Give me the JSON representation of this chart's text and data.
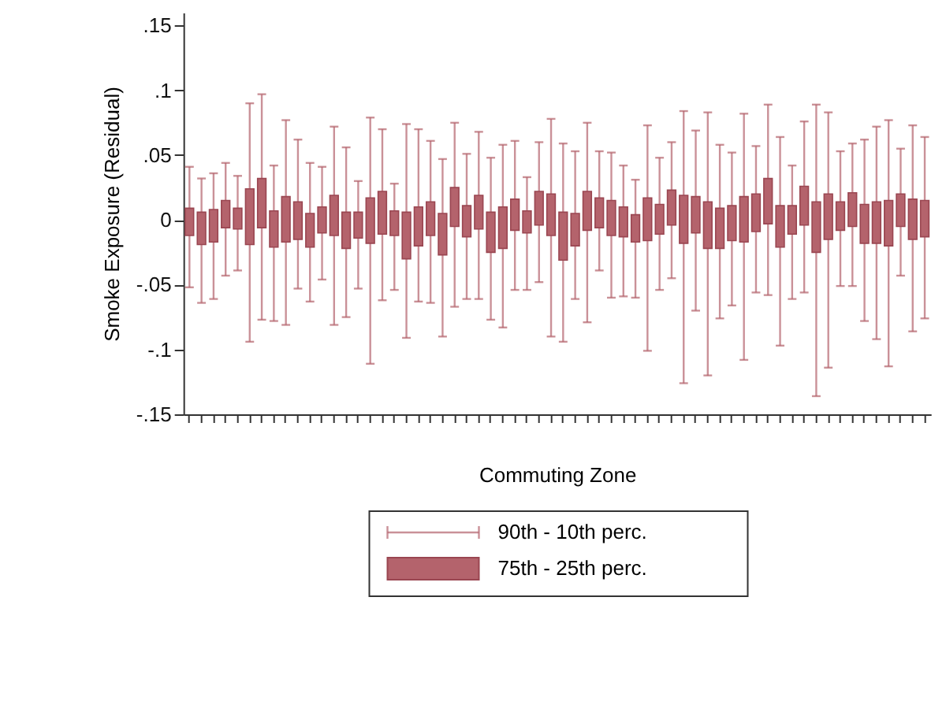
{
  "chart_data": {
    "type": "box",
    "xlabel": "Commuting Zone",
    "ylabel": "Smoke Exposure (Residual)",
    "categories": [
      null,
      null,
      null,
      null,
      null,
      null,
      null,
      null,
      null,
      null,
      null,
      null,
      null,
      null,
      null,
      null,
      null,
      null,
      null,
      null,
      null,
      null,
      null,
      null,
      null,
      null,
      null,
      null,
      null,
      null,
      null,
      null,
      null,
      null,
      null,
      null,
      null,
      null,
      null,
      null,
      null,
      null,
      null,
      null,
      null,
      null,
      null,
      null,
      null,
      null,
      null,
      null,
      null,
      null,
      null,
      null,
      null,
      null,
      null,
      null,
      null,
      null
    ],
    "annotations": [
      "90th - 10th perc."
    ],
    "series": [
      {
        "name": "75th - 25th perc.",
        "color": "#b4636c",
        "boxes": [
          {
            "low": -0.052,
            "q1": -0.012,
            "q3": 0.009,
            "high": 0.041
          },
          {
            "low": -0.064,
            "q1": -0.019,
            "q3": 0.006,
            "high": 0.032
          },
          {
            "low": -0.061,
            "q1": -0.017,
            "q3": 0.008,
            "high": 0.036
          },
          {
            "low": -0.043,
            "q1": -0.006,
            "q3": 0.015,
            "high": 0.044
          },
          {
            "low": -0.039,
            "q1": -0.007,
            "q3": 0.009,
            "high": 0.034
          },
          {
            "low": -0.094,
            "q1": -0.019,
            "q3": 0.024,
            "high": 0.09
          },
          {
            "low": -0.077,
            "q1": -0.006,
            "q3": 0.032,
            "high": 0.097
          },
          {
            "low": -0.078,
            "q1": -0.021,
            "q3": 0.007,
            "high": 0.042
          },
          {
            "low": -0.081,
            "q1": -0.017,
            "q3": 0.018,
            "high": 0.077
          },
          {
            "low": -0.053,
            "q1": -0.015,
            "q3": 0.014,
            "high": 0.062
          },
          {
            "low": -0.063,
            "q1": -0.021,
            "q3": 0.005,
            "high": 0.044
          },
          {
            "low": -0.046,
            "q1": -0.01,
            "q3": 0.01,
            "high": 0.041
          },
          {
            "low": -0.081,
            "q1": -0.012,
            "q3": 0.019,
            "high": 0.072
          },
          {
            "low": -0.075,
            "q1": -0.022,
            "q3": 0.006,
            "high": 0.056
          },
          {
            "low": -0.053,
            "q1": -0.014,
            "q3": 0.006,
            "high": 0.03
          },
          {
            "low": -0.111,
            "q1": -0.018,
            "q3": 0.017,
            "high": 0.079
          },
          {
            "low": -0.062,
            "q1": -0.011,
            "q3": 0.022,
            "high": 0.07
          },
          {
            "low": -0.054,
            "q1": -0.012,
            "q3": 0.007,
            "high": 0.028
          },
          {
            "low": -0.091,
            "q1": -0.03,
            "q3": 0.006,
            "high": 0.074
          },
          {
            "low": -0.063,
            "q1": -0.02,
            "q3": 0.01,
            "high": 0.07
          },
          {
            "low": -0.064,
            "q1": -0.012,
            "q3": 0.014,
            "high": 0.061
          },
          {
            "low": -0.09,
            "q1": -0.027,
            "q3": 0.005,
            "high": 0.047
          },
          {
            "low": -0.067,
            "q1": -0.005,
            "q3": 0.025,
            "high": 0.075
          },
          {
            "low": -0.061,
            "q1": -0.013,
            "q3": 0.011,
            "high": 0.051
          },
          {
            "low": -0.061,
            "q1": -0.007,
            "q3": 0.019,
            "high": 0.068
          },
          {
            "low": -0.077,
            "q1": -0.025,
            "q3": 0.006,
            "high": 0.048
          },
          {
            "low": -0.083,
            "q1": -0.022,
            "q3": 0.01,
            "high": 0.058
          },
          {
            "low": -0.054,
            "q1": -0.008,
            "q3": 0.016,
            "high": 0.061
          },
          {
            "low": -0.054,
            "q1": -0.01,
            "q3": 0.007,
            "high": 0.033
          },
          {
            "low": -0.048,
            "q1": -0.004,
            "q3": 0.022,
            "high": 0.06
          },
          {
            "low": -0.09,
            "q1": -0.012,
            "q3": 0.02,
            "high": 0.078
          },
          {
            "low": -0.094,
            "q1": -0.031,
            "q3": 0.006,
            "high": 0.059
          },
          {
            "low": -0.061,
            "q1": -0.02,
            "q3": 0.005,
            "high": 0.053
          },
          {
            "low": -0.079,
            "q1": -0.008,
            "q3": 0.022,
            "high": 0.075
          },
          {
            "low": -0.039,
            "q1": -0.006,
            "q3": 0.017,
            "high": 0.053
          },
          {
            "low": -0.06,
            "q1": -0.012,
            "q3": 0.015,
            "high": 0.052
          },
          {
            "low": -0.059,
            "q1": -0.013,
            "q3": 0.01,
            "high": 0.042
          },
          {
            "low": -0.06,
            "q1": -0.017,
            "q3": 0.004,
            "high": 0.031
          },
          {
            "low": -0.101,
            "q1": -0.016,
            "q3": 0.017,
            "high": 0.073
          },
          {
            "low": -0.054,
            "q1": -0.011,
            "q3": 0.012,
            "high": 0.048
          },
          {
            "low": -0.045,
            "q1": -0.004,
            "q3": 0.023,
            "high": 0.06
          },
          {
            "low": -0.126,
            "q1": -0.018,
            "q3": 0.019,
            "high": 0.084
          },
          {
            "low": -0.07,
            "q1": -0.01,
            "q3": 0.018,
            "high": 0.069
          },
          {
            "low": -0.12,
            "q1": -0.022,
            "q3": 0.014,
            "high": 0.083
          },
          {
            "low": -0.076,
            "q1": -0.022,
            "q3": 0.009,
            "high": 0.058
          },
          {
            "low": -0.066,
            "q1": -0.016,
            "q3": 0.011,
            "high": 0.052
          },
          {
            "low": -0.108,
            "q1": -0.017,
            "q3": 0.018,
            "high": 0.082
          },
          {
            "low": -0.056,
            "q1": -0.009,
            "q3": 0.02,
            "high": 0.057
          },
          {
            "low": -0.058,
            "q1": -0.003,
            "q3": 0.032,
            "high": 0.089
          },
          {
            "low": -0.097,
            "q1": -0.021,
            "q3": 0.011,
            "high": 0.064
          },
          {
            "low": -0.061,
            "q1": -0.011,
            "q3": 0.011,
            "high": 0.042
          },
          {
            "low": -0.056,
            "q1": -0.004,
            "q3": 0.026,
            "high": 0.076
          },
          {
            "low": -0.136,
            "q1": -0.025,
            "q3": 0.014,
            "high": 0.089
          },
          {
            "low": -0.114,
            "q1": -0.015,
            "q3": 0.02,
            "high": 0.083
          },
          {
            "low": -0.051,
            "q1": -0.008,
            "q3": 0.014,
            "high": 0.053
          },
          {
            "low": -0.051,
            "q1": -0.005,
            "q3": 0.021,
            "high": 0.059
          },
          {
            "low": -0.078,
            "q1": -0.018,
            "q3": 0.012,
            "high": 0.062
          },
          {
            "low": -0.092,
            "q1": -0.018,
            "q3": 0.014,
            "high": 0.072
          },
          {
            "low": -0.113,
            "q1": -0.02,
            "q3": 0.015,
            "high": 0.077
          },
          {
            "low": -0.043,
            "q1": -0.005,
            "q3": 0.02,
            "high": 0.055
          },
          {
            "low": -0.086,
            "q1": -0.015,
            "q3": 0.016,
            "high": 0.073
          },
          {
            "low": -0.076,
            "q1": -0.013,
            "q3": 0.015,
            "high": 0.064
          }
        ]
      }
    ],
    "ylim": [
      -0.15,
      0.16
    ],
    "yticks": [
      {
        "value": -0.15,
        "label": "-.15"
      },
      {
        "value": -0.1,
        "label": "-.1"
      },
      {
        "value": -0.05,
        "label": "-.05"
      },
      0,
      {
        "value": 0.05,
        "label": ".05"
      },
      {
        "value": 0.1,
        "label": ".1"
      },
      {
        "value": 0.15,
        "label": ".15"
      }
    ],
    "grid": false,
    "legend": "bottom"
  }
}
